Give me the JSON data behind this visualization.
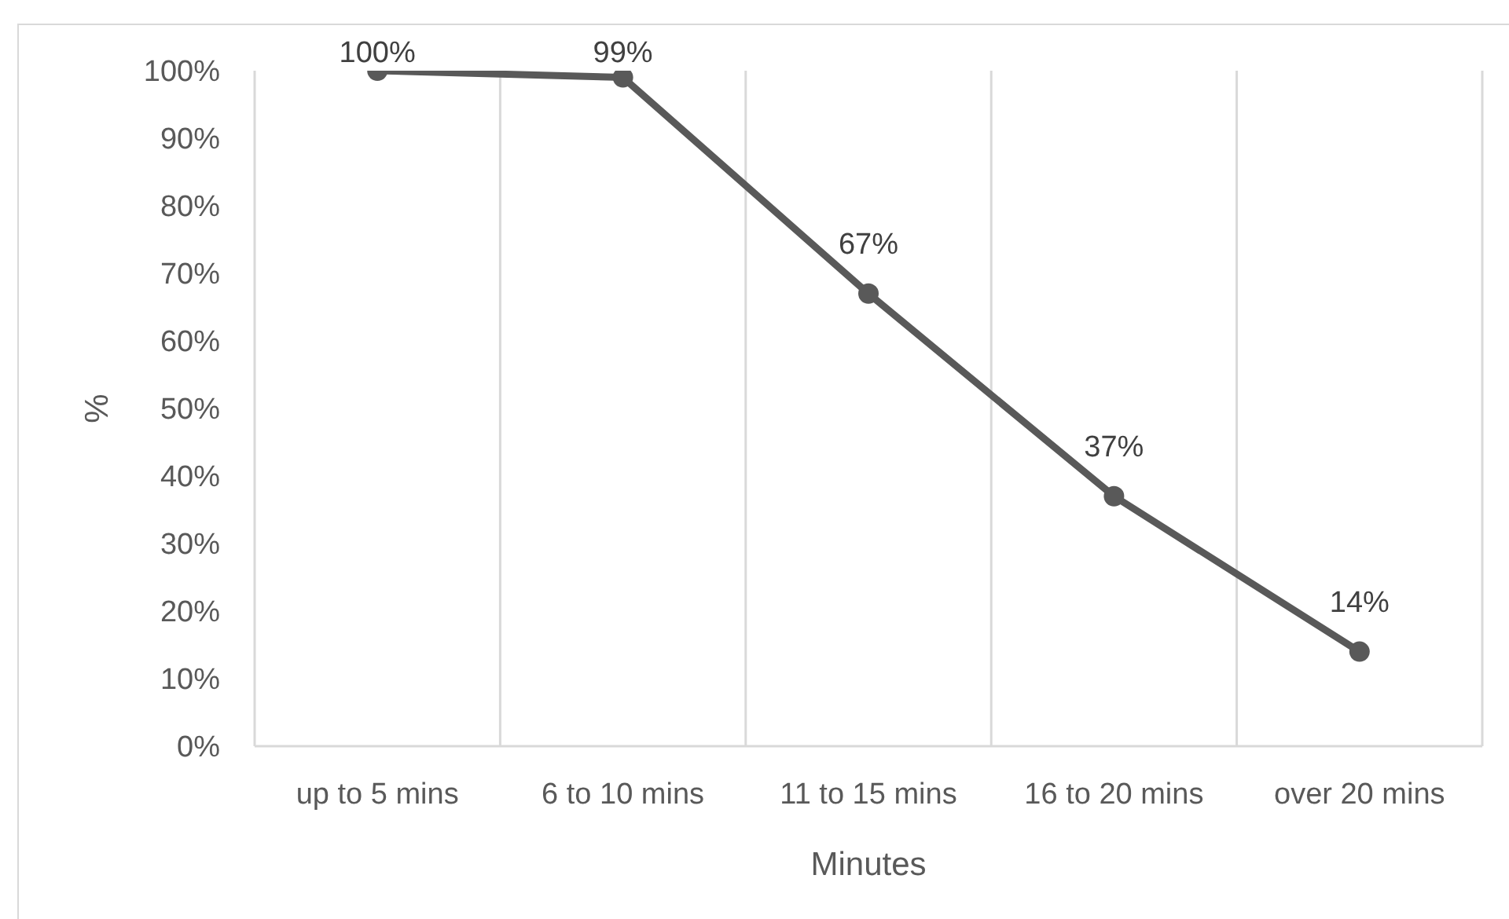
{
  "chart_data": {
    "type": "line",
    "xlabel": "Minutes",
    "ylabel": "%",
    "categories": [
      "up to 5 mins",
      "6 to 10 mins",
      "11 to 15 mins",
      "16 to 20 mins",
      "over 20 mins"
    ],
    "series": [
      {
        "color": "#595959",
        "values": [
          100,
          99,
          67,
          37,
          14
        ],
        "value_labels": [
          "100%",
          "99%",
          "67%",
          "37%",
          "14%"
        ]
      }
    ],
    "ylim": [
      0,
      100
    ],
    "yticks": [
      {
        "value": 0,
        "label": "0%"
      },
      {
        "value": 10,
        "label": "10%"
      },
      {
        "value": 20,
        "label": "20%"
      },
      {
        "value": 30,
        "label": "30%"
      },
      {
        "value": 40,
        "label": "40%"
      },
      {
        "value": 50,
        "label": "50%"
      },
      {
        "value": 60,
        "label": "60%"
      },
      {
        "value": 70,
        "label": "70%"
      },
      {
        "value": 80,
        "label": "80%"
      },
      {
        "value": 90,
        "label": "90%"
      },
      {
        "value": 100,
        "label": "100%"
      }
    ],
    "grid": "x",
    "marker": "circle",
    "line_style": "solid"
  }
}
